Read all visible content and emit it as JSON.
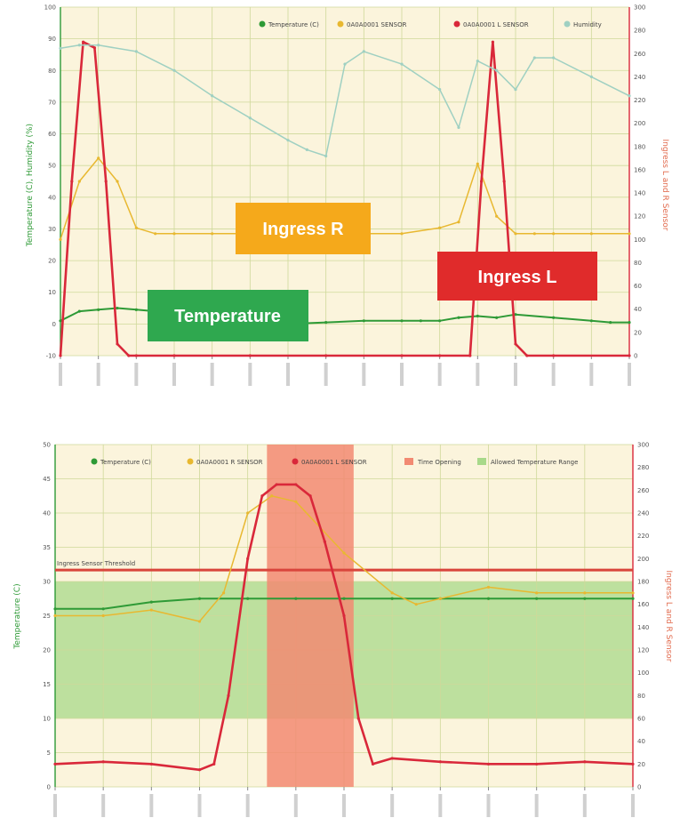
{
  "colors": {
    "temperature": "#2e9a36",
    "ingress_r": "#e8b830",
    "ingress_l": "#d9283a",
    "humidity": "#9fd0c2",
    "plot_bg": "#fbf4dc",
    "grid": "#cfd99a",
    "threshold": "#d9453c",
    "time_opening": "#f28a72",
    "allowed_band": "#a8d98a",
    "label_ingress_r": "#f5a91b",
    "label_ingress_l": "#e02b2b",
    "label_temperature": "#2fa84f"
  },
  "top_chart": {
    "y_left_title": "Temperature (C), Humidity (%)",
    "y_right_title": "Ingress L and R Sensor",
    "y_left_ticks": [
      "100",
      "90",
      "80",
      "70",
      "60",
      "50",
      "40",
      "30",
      "20",
      "10",
      "0",
      "-10"
    ],
    "y_right_ticks": [
      "300",
      "280",
      "260",
      "240",
      "220",
      "200",
      "180",
      "160",
      "140",
      "120",
      "100",
      "80",
      "60",
      "40",
      "20",
      "0"
    ],
    "legend": [
      "Temperature (C)",
      "0A0A0001 SENSOR",
      "0A0A0001 L SENSOR",
      "Humidity"
    ],
    "callouts": {
      "ingress_r": "Ingress R",
      "ingress_l": "Ingress L",
      "temperature": "Temperature"
    }
  },
  "bottom_chart": {
    "y_left_title": "Temperature (C)",
    "y_right_title": "Ingress L and R Sensor",
    "y_left_ticks": [
      "50",
      "45",
      "40",
      "35",
      "30",
      "25",
      "20",
      "15",
      "10",
      "5",
      "0"
    ],
    "y_right_ticks": [
      "300",
      "280",
      "260",
      "240",
      "220",
      "200",
      "180",
      "160",
      "140",
      "120",
      "100",
      "80",
      "60",
      "40",
      "20",
      "0"
    ],
    "legend": [
      "Temperature (C)",
      "0A0A0001 R SENSOR",
      "0A0A0001 L SENSOR",
      "Time Opening",
      "Allowed Temperature Range"
    ],
    "threshold_label": "Ingress Sensor Threshold"
  },
  "chart_data": [
    {
      "type": "line",
      "ylabel": "Temperature (C), Humidity (%)",
      "ylim": [
        -10,
        100
      ],
      "y2label": "Ingress L and R Sensor",
      "y2lim": [
        0,
        300
      ],
      "grid": true,
      "legend_position": "top-right",
      "series": [
        {
          "name": "Temperature (C)",
          "axis": "left",
          "x": [
            0,
            0.5,
            1,
            1.5,
            2,
            2.5,
            3,
            3.5,
            4,
            5,
            6,
            7,
            8,
            9,
            9.5,
            10,
            10.5,
            11,
            11.5,
            12,
            13,
            14,
            14.5,
            15
          ],
          "values": [
            1,
            4,
            4.5,
            5,
            4.5,
            4,
            3,
            2,
            1,
            0,
            0,
            0.5,
            1,
            1,
            1,
            1,
            2,
            2.5,
            2,
            3,
            2,
            1,
            0.5,
            0.5
          ]
        },
        {
          "name": "0A0A0001 SENSOR",
          "axis": "right",
          "x": [
            0,
            0.5,
            1,
            1.5,
            2,
            2.5,
            3,
            4,
            5,
            6,
            7,
            8,
            9,
            10,
            10.5,
            11,
            11.5,
            12,
            12.5,
            13,
            14,
            15
          ],
          "values": [
            100,
            150,
            170,
            150,
            110,
            105,
            105,
            105,
            105,
            105,
            105,
            105,
            105,
            110,
            115,
            165,
            120,
            105,
            105,
            105,
            105,
            105
          ]
        },
        {
          "name": "0A0A0001 L SENSOR",
          "axis": "right",
          "x": [
            0,
            0.3,
            0.6,
            0.9,
            1.2,
            1.5,
            1.8,
            2,
            3,
            5,
            7,
            9,
            10,
            10.8,
            11.1,
            11.4,
            11.7,
            12,
            12.3,
            13,
            15
          ],
          "values": [
            0,
            150,
            270,
            265,
            150,
            10,
            0,
            0,
            0,
            0,
            0,
            0,
            0,
            0,
            150,
            270,
            150,
            10,
            0,
            0,
            0
          ]
        },
        {
          "name": "Humidity",
          "axis": "left",
          "x": [
            0,
            0.5,
            1,
            2,
            3,
            4,
            5,
            6,
            6.5,
            7,
            7.5,
            8,
            9,
            10,
            10.5,
            11,
            11.5,
            12,
            12.5,
            13,
            14,
            15
          ],
          "values": [
            87,
            88,
            88,
            86,
            80,
            72,
            65,
            58,
            55,
            53,
            82,
            86,
            82,
            74,
            62,
            83,
            80,
            74,
            84,
            84,
            78,
            72
          ]
        }
      ]
    },
    {
      "type": "line",
      "ylabel": "Temperature (C)",
      "ylim": [
        0,
        50
      ],
      "y2label": "Ingress L and R Sensor",
      "y2lim": [
        0,
        300
      ],
      "grid": true,
      "legend_position": "top",
      "annotations": [
        "Ingress Sensor Threshold"
      ],
      "threshold_value_right": 190,
      "time_opening_range": [
        4.4,
        6.2
      ],
      "allowed_range_left": [
        10,
        30
      ],
      "series": [
        {
          "name": "Temperature (C)",
          "axis": "left",
          "x": [
            0,
            1,
            2,
            3,
            4,
            5,
            6,
            7,
            8,
            9,
            10,
            11,
            12
          ],
          "values": [
            26,
            26,
            27,
            27.5,
            27.5,
            27.5,
            27.5,
            27.5,
            27.5,
            27.5,
            27.5,
            27.5,
            27.5
          ]
        },
        {
          "name": "0A0A0001 R SENSOR",
          "axis": "right",
          "x": [
            0,
            1,
            2,
            3,
            3.5,
            4,
            4.5,
            5,
            6,
            7,
            7.5,
            8,
            9,
            10,
            11,
            12
          ],
          "values": [
            150,
            150,
            155,
            145,
            170,
            240,
            255,
            250,
            205,
            170,
            160,
            165,
            175,
            170,
            170,
            170
          ]
        },
        {
          "name": "0A0A0001 L SENSOR",
          "axis": "right",
          "x": [
            0,
            1,
            2,
            3,
            3.3,
            3.6,
            4,
            4.3,
            4.6,
            5,
            5.3,
            5.6,
            6,
            6.3,
            6.6,
            7,
            8,
            9,
            10,
            11,
            12
          ],
          "values": [
            20,
            22,
            20,
            15,
            20,
            80,
            200,
            255,
            265,
            265,
            255,
            215,
            150,
            60,
            20,
            25,
            22,
            20,
            20,
            22,
            20
          ]
        }
      ]
    }
  ]
}
